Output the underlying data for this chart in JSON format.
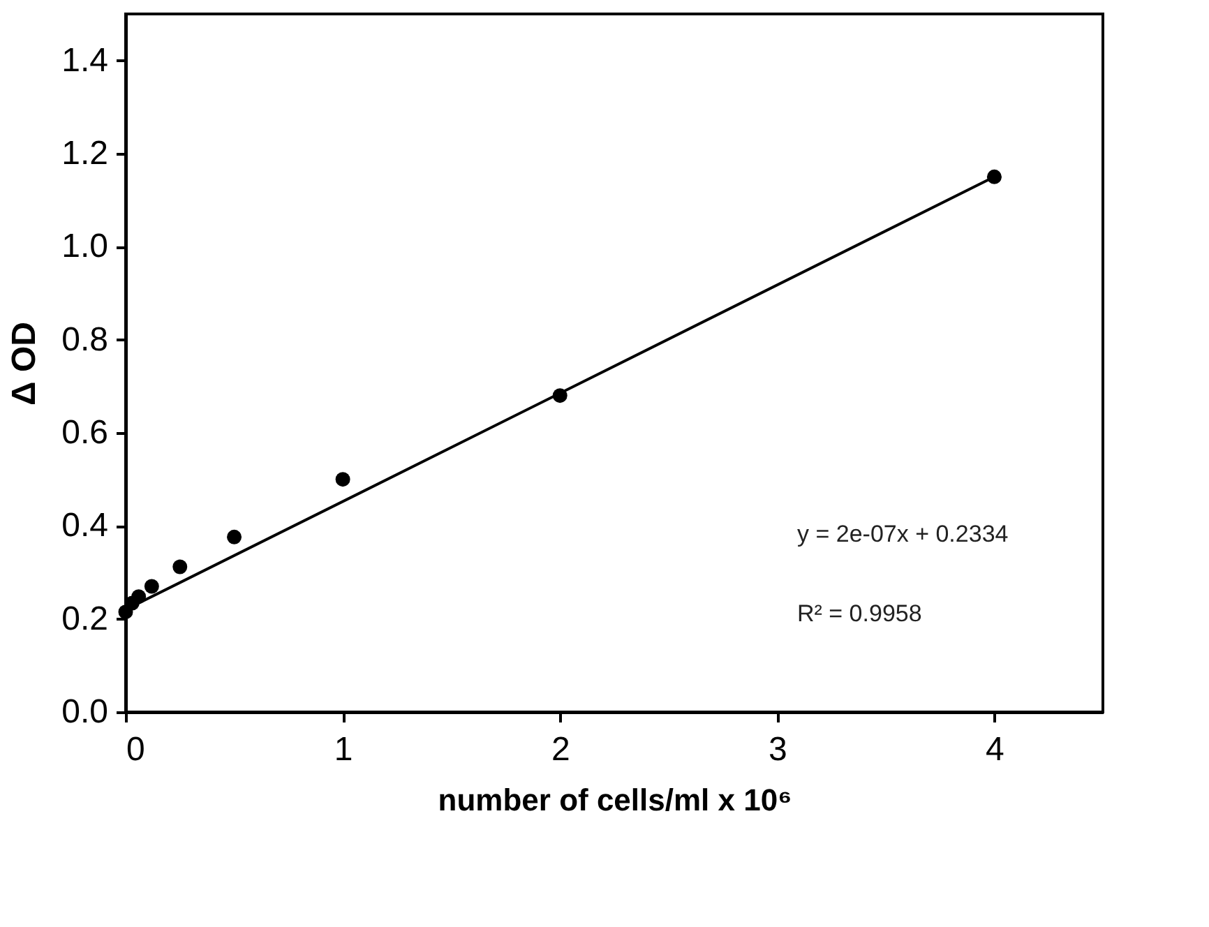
{
  "chart_data": {
    "type": "scatter",
    "xlabel": "number of cells/ml x 10⁶",
    "ylabel": "Δ OD",
    "xlim": [
      0,
      4.5
    ],
    "ylim": [
      0,
      1.5
    ],
    "xticks": [
      0,
      1,
      2,
      3,
      4
    ],
    "yticks": [
      {
        "value": 0,
        "label": "0.0"
      },
      {
        "value": 0.2,
        "label": "0.2"
      },
      {
        "value": 0.4,
        "label": "0.4"
      },
      {
        "value": 0.6,
        "label": "0.6"
      },
      {
        "value": 0.8,
        "label": "0.8"
      },
      {
        "value": 1.0,
        "label": "1.0"
      },
      {
        "value": 1.2,
        "label": "1.2"
      },
      {
        "value": 1.4,
        "label": "1.4"
      }
    ],
    "grid": false,
    "series": [
      {
        "type": "scatter",
        "color": "#000000",
        "marker": "circle",
        "x": [
          0,
          0.03,
          0.06,
          0.12,
          0.25,
          0.5,
          1,
          2,
          4
        ],
        "values": [
          0.215,
          0.234,
          0.248,
          0.27,
          0.312,
          0.376,
          0.5,
          0.68,
          1.15
        ]
      },
      {
        "type": "line",
        "color": "#000000",
        "line_style": "solid",
        "x": [
          0,
          4
        ],
        "values": [
          0.22,
          1.15
        ]
      }
    ],
    "annotations": [
      {
        "text": "y = 2e-07x + 0.2334"
      },
      {
        "text": "R² = 0.9958"
      }
    ]
  }
}
